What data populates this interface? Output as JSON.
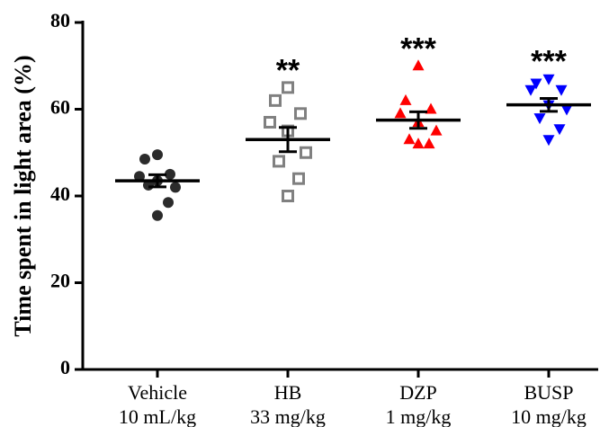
{
  "chart_data": {
    "type": "scatter",
    "title": "",
    "ylabel": "Time spent in light area (%)",
    "xlabel": "",
    "ylim": [
      0,
      80
    ],
    "yticks": [
      0,
      20,
      40,
      60,
      80
    ],
    "grid": false,
    "groups": [
      {
        "label_line1": "Vehicle",
        "label_line2": "10 mL/kg",
        "marker": "circle",
        "color": "#2b2b2b",
        "filled": true,
        "values": [
          49.5,
          48.5,
          45,
          44.5,
          43.5,
          42,
          42.5,
          38.5,
          35.5
        ],
        "mean": 43.5,
        "sem": 1.4,
        "significance": ""
      },
      {
        "label_line1": "HB",
        "label_line2": "33 mg/kg",
        "marker": "square",
        "color": "#808080",
        "filled": false,
        "values": [
          65,
          62,
          59,
          57,
          55,
          50,
          48,
          44,
          40
        ],
        "mean": 53,
        "sem": 2.8,
        "significance": "**"
      },
      {
        "label_line1": "DZP",
        "label_line2": "1 mg/kg",
        "marker": "triangle-up",
        "color": "#ff0000",
        "filled": true,
        "values": [
          70,
          62,
          60,
          59,
          57,
          55,
          53,
          52,
          52
        ],
        "mean": 57.5,
        "sem": 1.9,
        "significance": "***"
      },
      {
        "label_line1": "BUSP",
        "label_line2": "10 mg/kg",
        "marker": "triangle-down",
        "color": "#0000ff",
        "filled": true,
        "values": [
          67,
          66,
          64.5,
          64.5,
          61,
          60,
          58,
          55.5,
          53
        ],
        "mean": 61,
        "sem": 1.5,
        "significance": "***"
      }
    ]
  }
}
